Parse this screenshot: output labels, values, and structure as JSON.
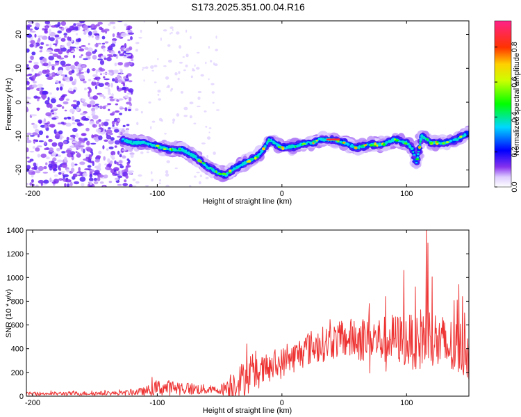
{
  "title": "S173.2025.351.00.04.R16",
  "chart_data": [
    {
      "type": "heatmap",
      "name": "spectrogram",
      "xlabel": "Height of straight line (km)",
      "ylabel": "Frequency (Hz)",
      "xlim": [
        -205,
        150
      ],
      "ylim": [
        -25,
        24
      ],
      "xticks": [
        -200,
        -100,
        0,
        100
      ],
      "yticks": [
        -20,
        -10,
        0,
        10,
        20
      ],
      "colorbar": {
        "label": "Normalized spectral amplitude",
        "range": [
          0,
          0.95
        ],
        "ticks": [
          "0.0",
          "0.2",
          "0.4",
          "0.6",
          "0.8"
        ],
        "tick_values": [
          0,
          0.2,
          0.4,
          0.6,
          0.8
        ]
      },
      "ridge": {
        "description": "frequency of peak spectral amplitude vs height",
        "x": [
          -128,
          -120,
          -110,
          -100,
          -90,
          -80,
          -70,
          -60,
          -50,
          -45,
          -40,
          -30,
          -20,
          -15,
          -10,
          0,
          10,
          20,
          25,
          30,
          40,
          50,
          60,
          70,
          80,
          90,
          100,
          105,
          108,
          112,
          120,
          130,
          140,
          150
        ],
        "y": [
          -11,
          -12,
          -12,
          -13,
          -14,
          -14,
          -16,
          -19,
          -21,
          -21.5,
          -20,
          -18,
          -16,
          -14,
          -11,
          -13.5,
          -13,
          -12,
          -12,
          -11,
          -11,
          -12,
          -13.5,
          -12.5,
          -12.5,
          -11,
          -12,
          -14,
          -18,
          -10,
          -12,
          -12,
          -11,
          -9
        ]
      }
    },
    {
      "type": "line",
      "name": "snr",
      "xlabel": "Height of straight line (km)",
      "ylabel": "SNR (10 * v/v)",
      "xlim": [
        -205,
        150
      ],
      "ylim": [
        0,
        1400
      ],
      "xticks": [
        -200,
        -100,
        0,
        100
      ],
      "yticks": [
        0,
        200,
        400,
        600,
        800,
        1000,
        1200,
        1400
      ],
      "color": "#ee3333",
      "envelope": {
        "description": "approximate mean SNR and noise spread along height",
        "x": [
          -205,
          -130,
          -110,
          -100,
          -80,
          -70,
          -50,
          -40,
          -30,
          -20,
          -10,
          0,
          10,
          20,
          30,
          40,
          50,
          60,
          70,
          80,
          90,
          100,
          110,
          115,
          120,
          130,
          140,
          150
        ],
        "mean": [
          20,
          25,
          40,
          70,
          70,
          60,
          50,
          100,
          150,
          190,
          230,
          280,
          330,
          400,
          430,
          460,
          480,
          480,
          490,
          470,
          490,
          460,
          470,
          520,
          480,
          420,
          400,
          380
        ],
        "spread": [
          15,
          18,
          35,
          70,
          60,
          50,
          30,
          130,
          150,
          130,
          130,
          130,
          130,
          150,
          150,
          150,
          160,
          190,
          200,
          200,
          210,
          220,
          260,
          300,
          280,
          260,
          250,
          250
        ]
      },
      "peaks": {
        "x": [
          116,
          117,
          98,
          107,
          142,
          145,
          83,
          70,
          -28,
          -21
        ],
        "y": [
          1400,
          1290,
          1060,
          920,
          940,
          840,
          840,
          780,
          440,
          380
        ]
      }
    }
  ]
}
